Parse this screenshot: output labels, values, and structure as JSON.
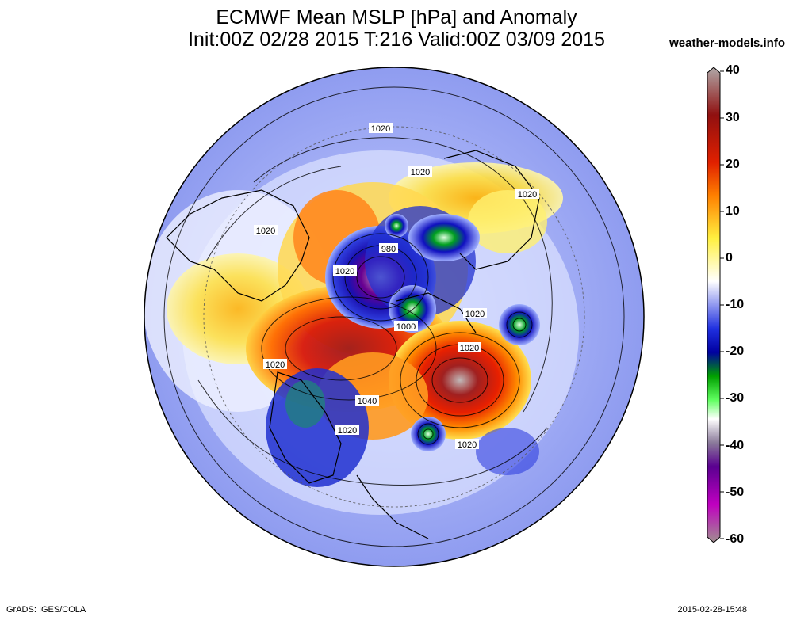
{
  "header": {
    "title_line1": "ECMWF Mean MSLP [hPa] and Anomaly",
    "title_line2": "Init:00Z 02/28 2015 T:216 Valid:00Z 03/09 2015",
    "site": "weather-models.info"
  },
  "footer": {
    "credit": "GrADS: IGES/COLA",
    "timestamp": "2015-02-28-15:48"
  },
  "map": {
    "projection": "north-polar-stereographic",
    "isobar_labels": [
      "1020",
      "1020",
      "1020",
      "1020",
      "980",
      "1020",
      "1000",
      "1020",
      "1020",
      "1020",
      "1040",
      "1020",
      "1020"
    ]
  },
  "colorbar": {
    "tick_labels": [
      "40",
      "30",
      "20",
      "10",
      "0",
      "-10",
      "-20",
      "-30",
      "-40",
      "-50",
      "-60"
    ],
    "colors": [
      "#b0a0a0",
      "#a01818",
      "#e02000",
      "#ff8000",
      "#fff040",
      "#ffffff",
      "#a0b0ff",
      "#1010c0",
      "#00a000",
      "#60ff60",
      "#ffffff",
      "#a0a0a0",
      "#6000a0",
      "#c000c0",
      "#ff60ff"
    ]
  }
}
